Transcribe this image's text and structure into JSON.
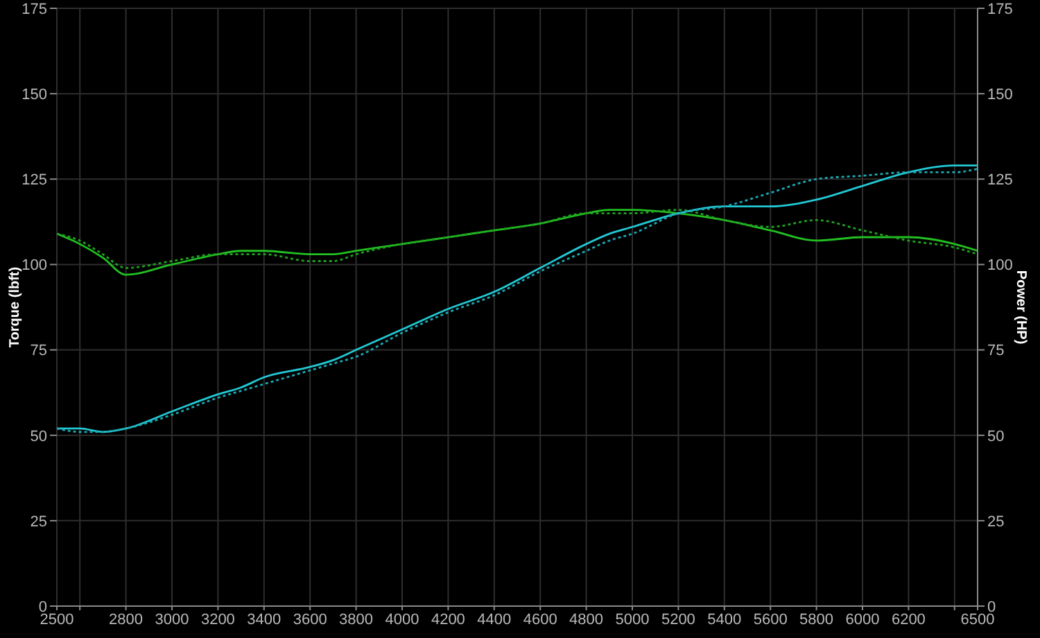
{
  "chart_data": {
    "type": "line",
    "x": [
      2500,
      2600,
      2700,
      2800,
      3000,
      3200,
      3300,
      3400,
      3600,
      3700,
      3800,
      4000,
      4200,
      4400,
      4600,
      4800,
      4900,
      5000,
      5200,
      5400,
      5600,
      5800,
      6000,
      6200,
      6400,
      6500
    ],
    "xlim": [
      2500,
      6500
    ],
    "xticks": [
      2500,
      {
        "value": 2600,
        "label": null
      },
      2800,
      3000,
      3200,
      3400,
      3600,
      3800,
      4000,
      4200,
      4400,
      4600,
      4800,
      5000,
      5200,
      5400,
      5600,
      5800,
      6000,
      6200,
      {
        "value": 6400,
        "label": null
      },
      6500
    ],
    "ylabel": "Torque (lbft)",
    "y2label": "Power (HP)",
    "ylim": [
      0,
      175
    ],
    "yticks": [
      0,
      25,
      50,
      75,
      100,
      125,
      150,
      175
    ],
    "y2lim": [
      0,
      175
    ],
    "y2ticks": [
      0,
      25,
      50,
      75,
      100,
      125,
      150,
      175
    ],
    "grid": true,
    "marker": "none",
    "series": [
      {
        "color": "#22c022",
        "line_style": "solid",
        "values": [
          109,
          106,
          102,
          97,
          100,
          103,
          104,
          104,
          103,
          103,
          104,
          106,
          108,
          110,
          112,
          115,
          116,
          116,
          115,
          113,
          110,
          107,
          108,
          108,
          106,
          104
        ]
      },
      {
        "color": "#1fa01f",
        "line_style": "dotted",
        "values": [
          109,
          107,
          103,
          99,
          101,
          103,
          103,
          103,
          101,
          101,
          103,
          106,
          108,
          110,
          112,
          115,
          115,
          115,
          116,
          113,
          111,
          113,
          110,
          107,
          105,
          103
        ]
      },
      {
        "color": "#22c8d4",
        "line_style": "solid",
        "axis": "y2",
        "values": [
          52,
          52,
          51,
          52,
          57,
          62,
          64,
          67,
          70,
          72,
          75,
          81,
          87,
          92,
          99,
          106,
          109,
          111,
          115,
          117,
          117,
          119,
          123,
          127,
          129,
          129
        ]
      },
      {
        "color": "#1ca6b0",
        "line_style": "dotted",
        "axis": "y2",
        "values": [
          52,
          51,
          51,
          52,
          56,
          61,
          63,
          65,
          69,
          71,
          73,
          80,
          86,
          91,
          98,
          104,
          107,
          109,
          115,
          117,
          121,
          125,
          126,
          127,
          127,
          128
        ]
      }
    ]
  }
}
